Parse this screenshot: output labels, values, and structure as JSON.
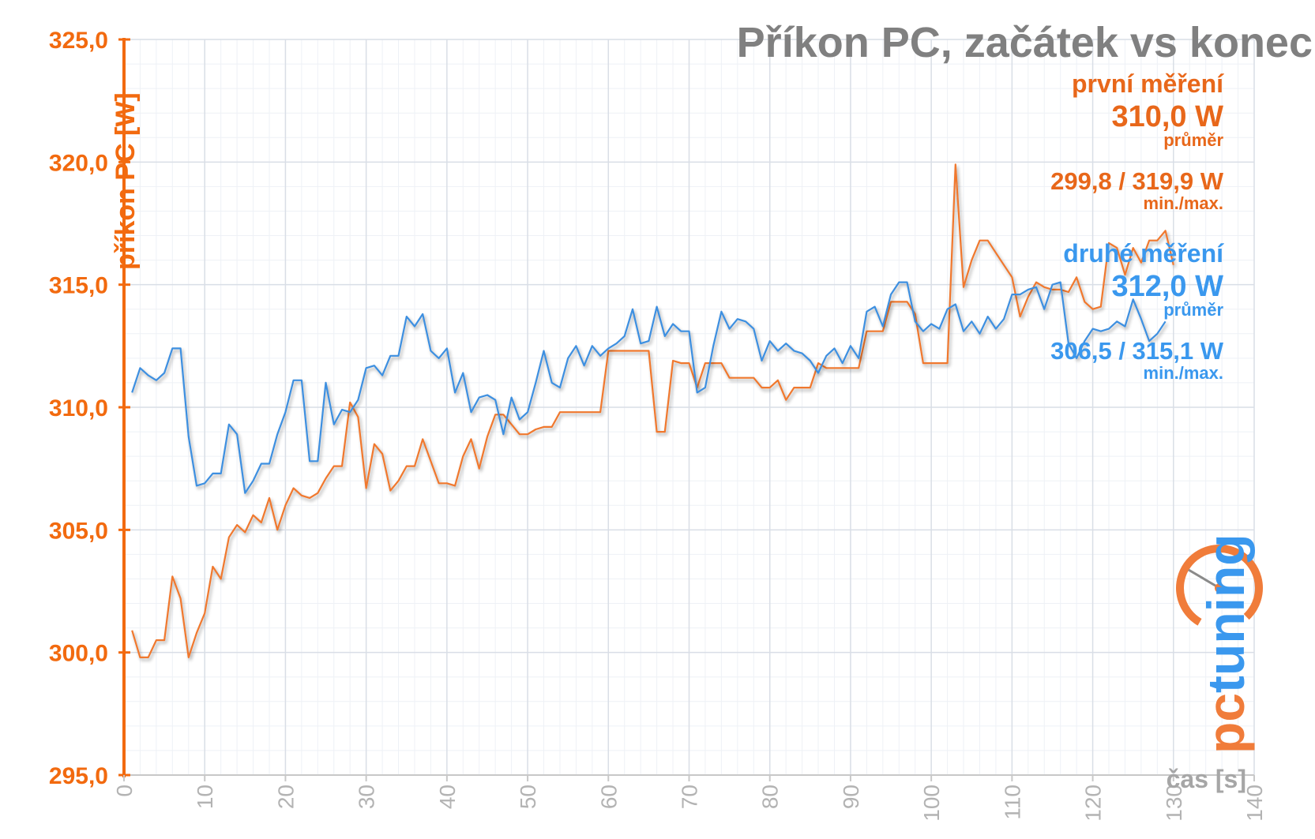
{
  "title": "Příkon PC, začátek vs konec",
  "chart_data": {
    "type": "line",
    "ylabel": "příkon PC [W]",
    "xlabel": "čas [s]",
    "ylim": [
      295,
      325
    ],
    "xlim": [
      0,
      140
    ],
    "yticks": [
      "295,0",
      "300,0",
      "305,0",
      "310,0",
      "315,0",
      "320,0",
      "325,0"
    ],
    "xticks": [
      "0",
      "10",
      "20",
      "30",
      "40",
      "50",
      "60",
      "70",
      "80",
      "90",
      "100",
      "110",
      "120",
      "130",
      "140"
    ],
    "grid": true,
    "series": [
      {
        "name": "první měření",
        "color": "#f0782d",
        "x": [
          1,
          2,
          3,
          4,
          5,
          6,
          7,
          8,
          9,
          10,
          11,
          12,
          13,
          14,
          15,
          16,
          17,
          18,
          19,
          20,
          21,
          22,
          23,
          24,
          25,
          26,
          27,
          28,
          29,
          30,
          31,
          32,
          33,
          34,
          35,
          36,
          37,
          38,
          39,
          40,
          41,
          42,
          43,
          44,
          45,
          46,
          47,
          48,
          49,
          50,
          51,
          52,
          53,
          54,
          55,
          56,
          57,
          58,
          59,
          60,
          61,
          62,
          63,
          64,
          65,
          66,
          67,
          68,
          69,
          70,
          71,
          72,
          73,
          74,
          75,
          76,
          77,
          78,
          79,
          80,
          81,
          82,
          83,
          84,
          85,
          86,
          87,
          88,
          89,
          90,
          91,
          92,
          93,
          94,
          95,
          96,
          97,
          98,
          99,
          100,
          101,
          102,
          103,
          104,
          105,
          106,
          107,
          108,
          109,
          110,
          111,
          112,
          113,
          114,
          115,
          116,
          117,
          118,
          119,
          120,
          121,
          122,
          123,
          124,
          125,
          126,
          127,
          128,
          129,
          130
        ],
        "y": [
          300.9,
          299.8,
          299.8,
          300.5,
          300.5,
          303.1,
          302.2,
          299.8,
          300.8,
          301.6,
          303.5,
          303.0,
          304.7,
          305.2,
          304.9,
          305.6,
          305.3,
          306.3,
          305.0,
          306.0,
          306.7,
          306.4,
          306.3,
          306.5,
          307.1,
          307.6,
          307.6,
          310.2,
          309.6,
          306.7,
          308.5,
          308.1,
          306.6,
          307.0,
          307.6,
          307.6,
          308.7,
          307.8,
          306.9,
          306.9,
          306.8,
          308.0,
          308.7,
          307.5,
          308.8,
          309.7,
          309.7,
          309.3,
          308.9,
          308.9,
          309.1,
          309.2,
          309.2,
          309.8,
          309.8,
          309.8,
          309.8,
          309.8,
          309.8,
          312.3,
          312.3,
          312.3,
          312.3,
          312.3,
          312.3,
          309.0,
          309.0,
          311.9,
          311.8,
          311.8,
          310.8,
          311.8,
          311.8,
          311.8,
          311.2,
          311.2,
          311.2,
          311.2,
          310.8,
          310.8,
          311.1,
          310.3,
          310.8,
          310.8,
          310.8,
          311.8,
          311.6,
          311.6,
          311.6,
          311.6,
          311.6,
          313.1,
          313.1,
          313.1,
          314.3,
          314.3,
          314.3,
          313.8,
          311.8,
          311.8,
          311.8,
          311.8,
          319.9,
          314.9,
          316.0,
          316.8,
          316.8,
          316.3,
          315.8,
          315.3,
          313.7,
          314.5,
          315.1,
          314.9,
          314.8,
          314.8,
          314.7,
          315.3,
          314.3,
          314.0,
          314.1,
          316.7,
          316.5,
          315.4,
          316.5,
          315.9,
          316.8,
          316.8,
          317.2,
          315.8
        ]
      },
      {
        "name": "druhé měření",
        "color": "#3d8fe0",
        "x": [
          1,
          2,
          3,
          4,
          5,
          6,
          7,
          8,
          9,
          10,
          11,
          12,
          13,
          14,
          15,
          16,
          17,
          18,
          19,
          20,
          21,
          22,
          23,
          24,
          25,
          26,
          27,
          28,
          29,
          30,
          31,
          32,
          33,
          34,
          35,
          36,
          37,
          38,
          39,
          40,
          41,
          42,
          43,
          44,
          45,
          46,
          47,
          48,
          49,
          50,
          51,
          52,
          53,
          54,
          55,
          56,
          57,
          58,
          59,
          60,
          61,
          62,
          63,
          64,
          65,
          66,
          67,
          68,
          69,
          70,
          71,
          72,
          73,
          74,
          75,
          76,
          77,
          78,
          79,
          80,
          81,
          82,
          83,
          84,
          85,
          86,
          87,
          88,
          89,
          90,
          91,
          92,
          93,
          94,
          95,
          96,
          97,
          98,
          99,
          100,
          101,
          102,
          103,
          104,
          105,
          106,
          107,
          108,
          109,
          110,
          111,
          112,
          113,
          114,
          115,
          116,
          117,
          118,
          119,
          120,
          121,
          122,
          123,
          124,
          125,
          126,
          127,
          128,
          129
        ],
        "y": [
          310.6,
          311.6,
          311.3,
          311.1,
          311.4,
          312.4,
          312.4,
          308.8,
          306.8,
          306.9,
          307.3,
          307.3,
          309.3,
          308.9,
          306.5,
          307.0,
          307.7,
          307.7,
          308.9,
          309.8,
          311.1,
          311.1,
          307.8,
          307.8,
          311.0,
          309.3,
          309.9,
          309.8,
          310.3,
          311.6,
          311.7,
          311.3,
          312.1,
          312.1,
          313.7,
          313.3,
          313.8,
          312.3,
          312.0,
          312.4,
          310.6,
          311.4,
          309.8,
          310.4,
          310.5,
          310.3,
          308.9,
          310.4,
          309.5,
          309.8,
          311.0,
          312.3,
          311.0,
          310.8,
          312.0,
          312.5,
          311.7,
          312.5,
          312.1,
          312.4,
          312.6,
          312.9,
          314.0,
          312.6,
          312.7,
          314.1,
          312.9,
          313.4,
          313.1,
          313.1,
          310.6,
          310.8,
          312.5,
          313.9,
          313.2,
          313.6,
          313.5,
          313.2,
          311.9,
          312.7,
          312.3,
          312.6,
          312.3,
          312.2,
          311.9,
          311.4,
          312.1,
          312.4,
          311.8,
          312.5,
          312.0,
          313.9,
          314.1,
          313.3,
          314.6,
          315.1,
          315.1,
          313.5,
          313.1,
          313.4,
          313.2,
          314.0,
          314.2,
          313.1,
          313.5,
          313.0,
          313.7,
          313.2,
          313.6,
          314.6,
          314.6,
          314.8,
          314.9,
          314.0,
          315.0,
          315.1,
          312.6,
          312.0,
          312.7,
          313.2,
          313.1,
          313.2,
          313.5,
          313.3,
          314.4,
          313.6,
          312.7,
          313.0,
          313.5
        ]
      }
    ],
    "annotations": {
      "first": {
        "label": "první měření",
        "avg_value": "310,0 W",
        "avg_label": "průměr",
        "minmax_value": "299,8 / 319,9 W",
        "minmax_label": "min./max."
      },
      "second": {
        "label": "druhé měření",
        "avg_value": "312,0 W",
        "avg_label": "průměr",
        "minmax_value": "306,5 / 315,1 W",
        "minmax_label": "min./max."
      }
    }
  },
  "logo": {
    "text_pc": "pc",
    "text_rest": "tuning",
    "name": "pctuning-logo"
  }
}
